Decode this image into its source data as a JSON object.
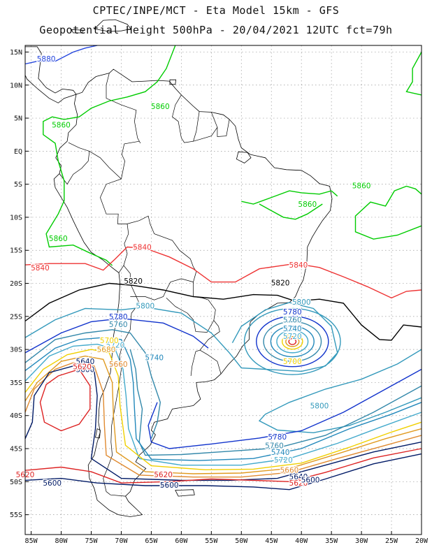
{
  "header": {
    "line1": "CPTEC/INPE/MCT -  Eta Model 15km - GFS",
    "line2": "Geopotential Height 500hPa - 20/04/2021 12UTC fct=79h"
  },
  "axes": {
    "lat_labels": [
      "15N",
      "10N",
      "5N",
      "EQ",
      "5S",
      "10S",
      "15S",
      "20S",
      "25S",
      "30S",
      "35S",
      "40S",
      "45S",
      "50S",
      "55S"
    ],
    "lon_labels": [
      "85W",
      "80W",
      "75W",
      "70W",
      "65W",
      "60W",
      "55W",
      "50W",
      "45W",
      "40W",
      "35W",
      "30W",
      "25W",
      "20W"
    ],
    "lat_range": [
      16,
      -58
    ],
    "lon_range": [
      -86,
      -20
    ]
  },
  "contours": [
    {
      "level": "5880",
      "color": "#2244dd"
    },
    {
      "level": "5860",
      "color": "#00cc00"
    },
    {
      "level": "5840",
      "color": "#ee3333"
    },
    {
      "level": "5820",
      "color": "#000000"
    },
    {
      "level": "5800",
      "color": "#3399bb"
    },
    {
      "level": "5780",
      "color": "#1133cc"
    },
    {
      "level": "5760",
      "color": "#3388aa"
    },
    {
      "level": "5740",
      "color": "#2288bb"
    },
    {
      "level": "5720",
      "color": "#44aacc"
    },
    {
      "level": "5700",
      "color": "#f0d000"
    },
    {
      "level": "5680",
      "color": "#e09a20"
    },
    {
      "level": "5660",
      "color": "#e08a30"
    },
    {
      "level": "5640",
      "color": "#001a66"
    },
    {
      "level": "5620",
      "color": "#dd2222"
    },
    {
      "level": "5600",
      "color": "#001a66"
    }
  ],
  "contour_labels": [
    {
      "text": "5880",
      "color": "#2244dd",
      "lon": -82.5,
      "lat": 14.0
    },
    {
      "text": "5860",
      "color": "#00cc00",
      "lon": -63.5,
      "lat": 6.8
    },
    {
      "text": "5860",
      "color": "#00cc00",
      "lon": -80.0,
      "lat": 4.0
    },
    {
      "text": "5860",
      "color": "#00cc00",
      "lon": -80.5,
      "lat": -13.2
    },
    {
      "text": "5860",
      "color": "#00cc00",
      "lon": -39.0,
      "lat": -8.0
    },
    {
      "text": "5860",
      "color": "#00cc00",
      "lon": -30.0,
      "lat": -5.2
    },
    {
      "text": "5840",
      "color": "#ee3333",
      "lon": -83.5,
      "lat": -17.6
    },
    {
      "text": "5840",
      "color": "#ee3333",
      "lon": -66.5,
      "lat": -14.5
    },
    {
      "text": "5840",
      "color": "#ee3333",
      "lon": -40.5,
      "lat": -17.2
    },
    {
      "text": "5820",
      "color": "#000000",
      "lon": -68.0,
      "lat": -19.6
    },
    {
      "text": "5820",
      "color": "#000000",
      "lon": -43.5,
      "lat": -19.9
    },
    {
      "text": "5800",
      "color": "#3399bb",
      "lon": -66.0,
      "lat": -23.4
    },
    {
      "text": "5800",
      "color": "#3399bb",
      "lon": -40.0,
      "lat": -22.8
    },
    {
      "text": "5800",
      "color": "#3399bb",
      "lon": -37.0,
      "lat": -38.5
    },
    {
      "text": "5780",
      "color": "#1133cc",
      "lon": -70.5,
      "lat": -25.0
    },
    {
      "text": "5780",
      "color": "#1133cc",
      "lon": -41.5,
      "lat": -24.3
    },
    {
      "text": "5780",
      "color": "#1133cc",
      "lon": -44.0,
      "lat": -43.2
    },
    {
      "text": "5760",
      "color": "#3388aa",
      "lon": -70.5,
      "lat": -26.2
    },
    {
      "text": "5760",
      "color": "#3388aa",
      "lon": -41.5,
      "lat": -25.5
    },
    {
      "text": "5760",
      "color": "#3388aa",
      "lon": -44.5,
      "lat": -44.5
    },
    {
      "text": "5740",
      "color": "#2288bb",
      "lon": -41.5,
      "lat": -26.8
    },
    {
      "text": "5740",
      "color": "#2288bb",
      "lon": -64.5,
      "lat": -31.2
    },
    {
      "text": "5740",
      "color": "#2288bb",
      "lon": -43.5,
      "lat": -45.5
    },
    {
      "text": "5720",
      "color": "#44aacc",
      "lon": -41.5,
      "lat": -28.0
    },
    {
      "text": "5720",
      "color": "#44aacc",
      "lon": -71.0,
      "lat": -29.3
    },
    {
      "text": "5720",
      "color": "#44aacc",
      "lon": -43.0,
      "lat": -46.7
    },
    {
      "text": "5700",
      "color": "#f0d000",
      "lon": -41.5,
      "lat": -31.8
    },
    {
      "text": "5700",
      "color": "#f0d000",
      "lon": -72.0,
      "lat": -28.6
    },
    {
      "text": "5680",
      "color": "#e09a20",
      "lon": -72.5,
      "lat": -30.0
    },
    {
      "text": "5660",
      "color": "#e08a30",
      "lon": -70.5,
      "lat": -32.2
    },
    {
      "text": "5660",
      "color": "#e08a30",
      "lon": -42.0,
      "lat": -48.2
    },
    {
      "text": "5640",
      "color": "#001a66",
      "lon": -76.0,
      "lat": -31.8
    },
    {
      "text": "5640",
      "color": "#001a66",
      "lon": -40.5,
      "lat": -49.2
    },
    {
      "text": "5600",
      "color": "#001a66",
      "lon": -76.0,
      "lat": -33.0
    },
    {
      "text": "5620",
      "color": "#dd2222",
      "lon": -76.5,
      "lat": -32.6
    },
    {
      "text": "5620",
      "color": "#dd2222",
      "lon": -86.0,
      "lat": -48.9
    },
    {
      "text": "5620",
      "color": "#dd2222",
      "lon": -63.0,
      "lat": -48.9
    },
    {
      "text": "5620",
      "color": "#dd2222",
      "lon": -40.5,
      "lat": -50.2
    },
    {
      "text": "5600",
      "color": "#001a66",
      "lon": -81.5,
      "lat": -50.2
    },
    {
      "text": "5600",
      "color": "#001a66",
      "lon": -62.0,
      "lat": -50.5
    },
    {
      "text": "5600",
      "color": "#001a66",
      "lon": -38.5,
      "lat": -49.7
    }
  ]
}
